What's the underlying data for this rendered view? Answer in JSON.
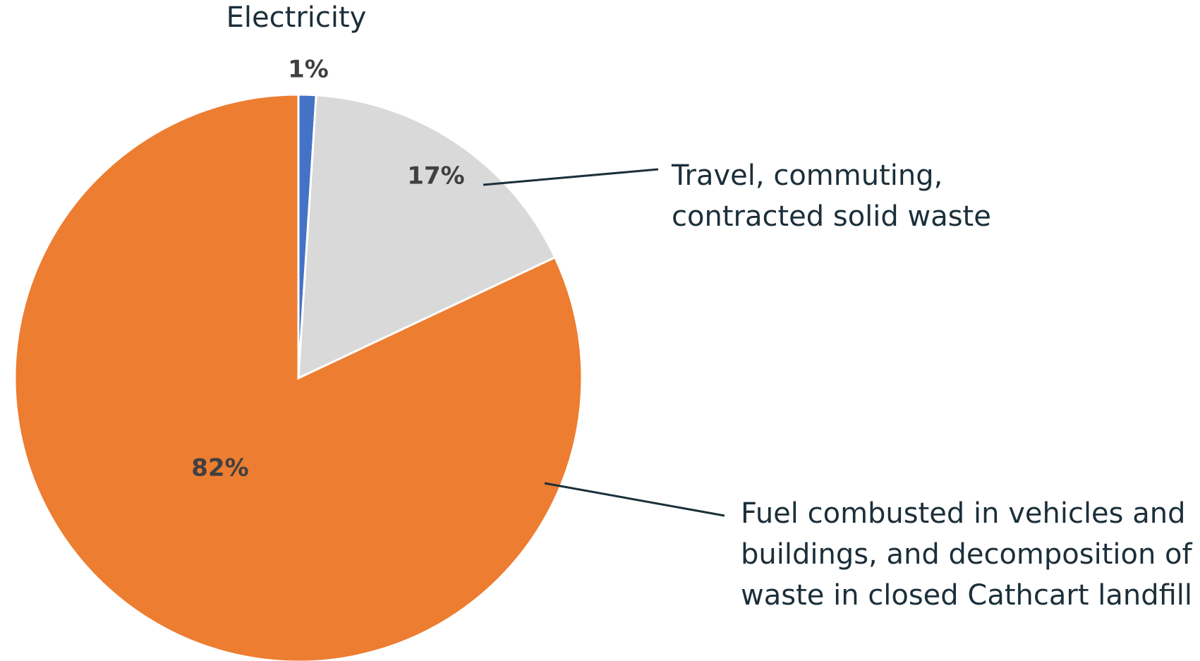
{
  "chart_data": {
    "type": "pie",
    "categories": [
      "Electricity",
      "Travel, commuting,\ncontracted solid waste",
      "Fuel combusted in vehicles and\nbuildings, and decomposition of\nwaste in closed Cathcart landfill"
    ],
    "values": [
      1,
      17,
      82
    ],
    "value_labels": [
      "1%",
      "17%",
      "82%"
    ],
    "colors": [
      "#4472c4",
      "#d9d9d9",
      "#ed7d31"
    ]
  }
}
